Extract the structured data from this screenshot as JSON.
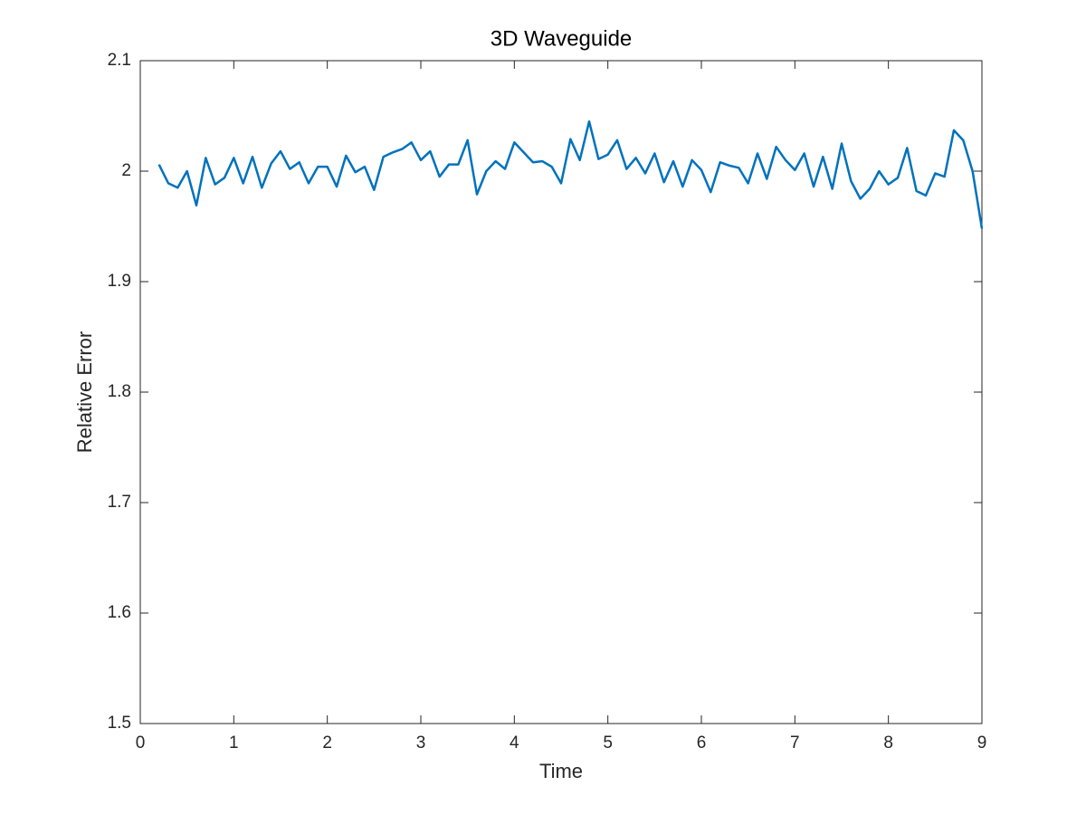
{
  "chart_data": {
    "type": "line",
    "title": "3D Waveguide",
    "x_label": "Time",
    "y_label": "Relative Error",
    "x": [
      0.2,
      0.3,
      0.4,
      0.5,
      0.6,
      0.7,
      0.8,
      0.9,
      1.0,
      1.1,
      1.2,
      1.3,
      1.4,
      1.5,
      1.6,
      1.7,
      1.8,
      1.9,
      2.0,
      2.1,
      2.2,
      2.3,
      2.4,
      2.5,
      2.6,
      2.7,
      2.8,
      2.9,
      3.0,
      3.1,
      3.2,
      3.3,
      3.4,
      3.5,
      3.6,
      3.7,
      3.8,
      3.9,
      4.0,
      4.1,
      4.2,
      4.3,
      4.4,
      4.5,
      4.6,
      4.7,
      4.8,
      4.9,
      5.0,
      5.1,
      5.2,
      5.3,
      5.4,
      5.5,
      5.6,
      5.7,
      5.8,
      5.9,
      6.0,
      6.1,
      6.2,
      6.3,
      6.4,
      6.5,
      6.6,
      6.7,
      6.8,
      6.9,
      7.0,
      7.1,
      7.2,
      7.3,
      7.4,
      7.5,
      7.6,
      7.7,
      7.8,
      7.9,
      8.0,
      8.1,
      8.2,
      8.3,
      8.4,
      8.5,
      8.6,
      8.7,
      8.8,
      8.9,
      9.0
    ],
    "series": [
      {
        "name": "Relative Error",
        "color": "#0072bd",
        "values": [
          2.006,
          1.989,
          1.985,
          2.0,
          1.969,
          2.012,
          1.988,
          1.994,
          2.012,
          1.989,
          2.013,
          1.985,
          2.007,
          2.018,
          2.002,
          2.008,
          1.989,
          2.004,
          2.004,
          1.986,
          2.014,
          1.999,
          2.004,
          1.983,
          2.013,
          2.017,
          2.02,
          2.026,
          2.01,
          2.018,
          1.995,
          2.006,
          2.006,
          2.028,
          1.979,
          2.0,
          2.009,
          2.002,
          2.026,
          2.017,
          2.008,
          2.009,
          2.004,
          1.989,
          2.029,
          2.01,
          2.045,
          2.011,
          2.015,
          2.028,
          2.002,
          2.012,
          1.998,
          2.016,
          1.99,
          2.009,
          1.986,
          2.01,
          2.001,
          1.981,
          2.008,
          2.005,
          2.003,
          1.989,
          2.016,
          1.993,
          2.022,
          2.01,
          2.001,
          2.016,
          1.986,
          2.013,
          1.984,
          2.025,
          1.991,
          1.975,
          1.984,
          2.0,
          1.988,
          1.994,
          2.021,
          1.982,
          1.978,
          1.998,
          1.995,
          2.037,
          2.028,
          2.0,
          1.948
        ]
      }
    ],
    "xlim": [
      0,
      9
    ],
    "ylim": [
      1.5,
      2.1
    ],
    "xticks": [
      0,
      1,
      2,
      3,
      4,
      5,
      6,
      7,
      8,
      9
    ],
    "yticks": [
      1.5,
      1.6,
      1.7,
      1.8,
      1.9,
      2,
      2.1
    ]
  }
}
